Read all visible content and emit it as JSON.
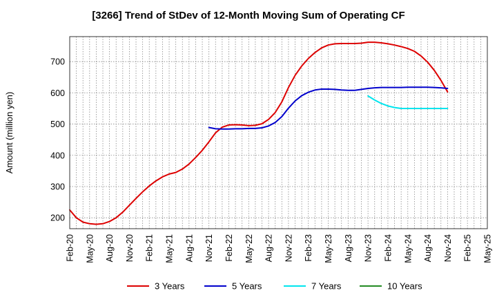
{
  "chart_data": {
    "type": "line",
    "title": "[3266]  Trend of StDev of 12-Month Moving Sum of Operating CF",
    "ylabel": "Amount (million yen)",
    "xlabel": "",
    "ylim": [
      165,
      780
    ],
    "yticks": [
      200,
      300,
      400,
      500,
      600,
      700
    ],
    "x_tick_labels": [
      "Feb-20",
      "May-20",
      "Aug-20",
      "Nov-20",
      "Feb-21",
      "May-21",
      "Aug-21",
      "Nov-21",
      "Feb-22",
      "May-22",
      "Aug-22",
      "Nov-22",
      "Feb-23",
      "May-23",
      "Aug-23",
      "Nov-23",
      "Feb-24",
      "May-24",
      "Aug-24",
      "Nov-24",
      "Feb-25",
      "May-25"
    ],
    "x_range": [
      "2020-02",
      "2025-05"
    ],
    "grid": true,
    "legend_position": "bottom",
    "series": [
      {
        "name": "3 Years",
        "color": "#dd0000",
        "points": [
          [
            "2020-02",
            225
          ],
          [
            "2020-03",
            200
          ],
          [
            "2020-04",
            186
          ],
          [
            "2020-05",
            181
          ],
          [
            "2020-06",
            179
          ],
          [
            "2020-07",
            181
          ],
          [
            "2020-08",
            188
          ],
          [
            "2020-09",
            200
          ],
          [
            "2020-10",
            218
          ],
          [
            "2020-11",
            240
          ],
          [
            "2020-12",
            262
          ],
          [
            "2021-01",
            283
          ],
          [
            "2021-02",
            302
          ],
          [
            "2021-03",
            318
          ],
          [
            "2021-04",
            331
          ],
          [
            "2021-05",
            340
          ],
          [
            "2021-06",
            345
          ],
          [
            "2021-07",
            356
          ],
          [
            "2021-08",
            372
          ],
          [
            "2021-09",
            393
          ],
          [
            "2021-10",
            416
          ],
          [
            "2021-11",
            443
          ],
          [
            "2021-12",
            472
          ],
          [
            "2022-01",
            490
          ],
          [
            "2022-02",
            497
          ],
          [
            "2022-03",
            498
          ],
          [
            "2022-04",
            497
          ],
          [
            "2022-05",
            495
          ],
          [
            "2022-06",
            496
          ],
          [
            "2022-07",
            501
          ],
          [
            "2022-08",
            515
          ],
          [
            "2022-09",
            537
          ],
          [
            "2022-10",
            571
          ],
          [
            "2022-11",
            617
          ],
          [
            "2022-12",
            656
          ],
          [
            "2023-01",
            686
          ],
          [
            "2023-02",
            710
          ],
          [
            "2023-03",
            729
          ],
          [
            "2023-04",
            744
          ],
          [
            "2023-05",
            753
          ],
          [
            "2023-06",
            757
          ],
          [
            "2023-07",
            758
          ],
          [
            "2023-08",
            758
          ],
          [
            "2023-09",
            758
          ],
          [
            "2023-10",
            759
          ],
          [
            "2023-11",
            762
          ],
          [
            "2023-12",
            762
          ],
          [
            "2024-01",
            760
          ],
          [
            "2024-02",
            757
          ],
          [
            "2024-03",
            753
          ],
          [
            "2024-04",
            748
          ],
          [
            "2024-05",
            742
          ],
          [
            "2024-06",
            733
          ],
          [
            "2024-07",
            718
          ],
          [
            "2024-08",
            698
          ],
          [
            "2024-09",
            672
          ],
          [
            "2024-10",
            640
          ],
          [
            "2024-11",
            603
          ]
        ]
      },
      {
        "name": "5 Years",
        "color": "#0000cc",
        "points": [
          [
            "2021-11",
            489
          ],
          [
            "2021-12",
            485
          ],
          [
            "2022-01",
            484
          ],
          [
            "2022-02",
            484
          ],
          [
            "2022-03",
            485
          ],
          [
            "2022-04",
            485
          ],
          [
            "2022-05",
            486
          ],
          [
            "2022-06",
            486
          ],
          [
            "2022-07",
            488
          ],
          [
            "2022-08",
            494
          ],
          [
            "2022-09",
            505
          ],
          [
            "2022-10",
            524
          ],
          [
            "2022-11",
            551
          ],
          [
            "2022-12",
            574
          ],
          [
            "2023-01",
            591
          ],
          [
            "2023-02",
            602
          ],
          [
            "2023-03",
            609
          ],
          [
            "2023-04",
            612
          ],
          [
            "2023-05",
            612
          ],
          [
            "2023-06",
            611
          ],
          [
            "2023-07",
            609
          ],
          [
            "2023-08",
            608
          ],
          [
            "2023-09",
            608
          ],
          [
            "2023-10",
            611
          ],
          [
            "2023-11",
            614
          ],
          [
            "2023-12",
            616
          ],
          [
            "2024-01",
            617
          ],
          [
            "2024-02",
            617
          ],
          [
            "2024-03",
            617
          ],
          [
            "2024-04",
            617
          ],
          [
            "2024-05",
            618
          ],
          [
            "2024-06",
            618
          ],
          [
            "2024-07",
            618
          ],
          [
            "2024-08",
            618
          ],
          [
            "2024-09",
            617
          ],
          [
            "2024-10",
            616
          ],
          [
            "2024-11",
            614
          ]
        ]
      },
      {
        "name": "7 Years",
        "color": "#00e5ee",
        "points": [
          [
            "2023-11",
            590
          ],
          [
            "2023-12",
            577
          ],
          [
            "2024-01",
            566
          ],
          [
            "2024-02",
            558
          ],
          [
            "2024-03",
            553
          ],
          [
            "2024-04",
            550
          ],
          [
            "2024-05",
            550
          ],
          [
            "2024-06",
            550
          ],
          [
            "2024-07",
            550
          ],
          [
            "2024-08",
            550
          ],
          [
            "2024-09",
            550
          ],
          [
            "2024-10",
            550
          ],
          [
            "2024-11",
            550
          ]
        ]
      },
      {
        "name": "10 Years",
        "color": "#228b22",
        "points": []
      }
    ]
  }
}
